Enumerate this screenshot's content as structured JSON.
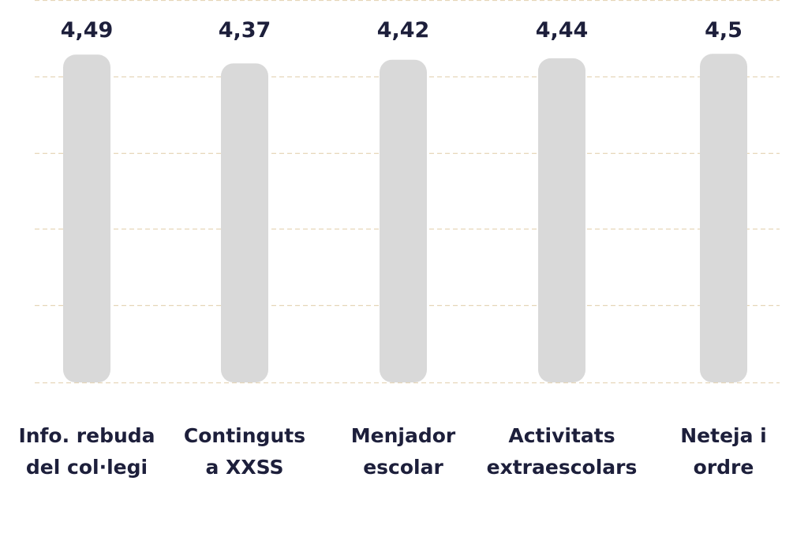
{
  "chart_data": {
    "type": "bar",
    "categories": [
      [
        "Info. rebuda",
        "del col·legi"
      ],
      [
        "Continguts",
        "a XXSS"
      ],
      [
        "Menjador",
        "escolar"
      ],
      [
        "Activitats",
        "extraescolars"
      ],
      [
        "Neteja i",
        "ordre"
      ]
    ],
    "values": [
      4.49,
      4.37,
      4.42,
      4.44,
      4.5
    ],
    "value_labels": [
      "4,49",
      "4,37",
      "4,42",
      "4,44",
      "4,5"
    ],
    "ylim": [
      0,
      5
    ],
    "grid": true,
    "colors": {
      "bar": "#d9d9d9",
      "grid": "#e6d6b8",
      "text": "#1d1f3b"
    }
  }
}
